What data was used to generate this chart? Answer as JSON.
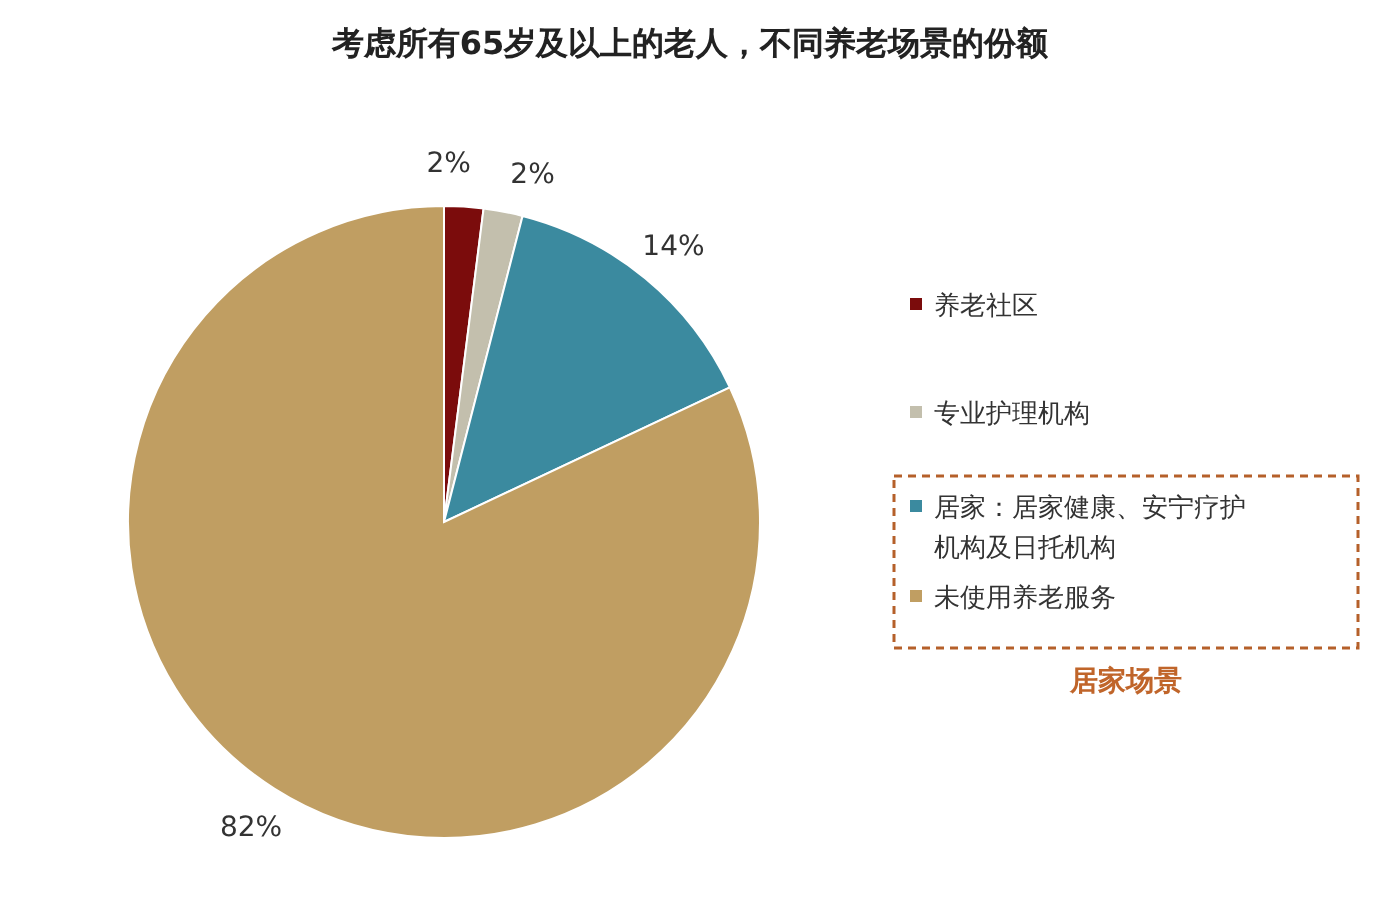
{
  "chart_data": {
    "type": "pie",
    "title": "考虑所有65岁及以上的老人，不同养老场景的份额",
    "categories": [
      "养老社区",
      "专业护理机构",
      "居家：居家健康、安宁疗护机构及日托机构",
      "未使用养老服务"
    ],
    "values": [
      2,
      2,
      14,
      82
    ],
    "colors": [
      "#7b0c0c",
      "#c3bfad",
      "#3b8a9f",
      "#c09e62"
    ],
    "value_labels": [
      "2%",
      "2%",
      "14%",
      "82%"
    ],
    "legend": "right",
    "annotations": [
      "居家场景"
    ]
  }
}
